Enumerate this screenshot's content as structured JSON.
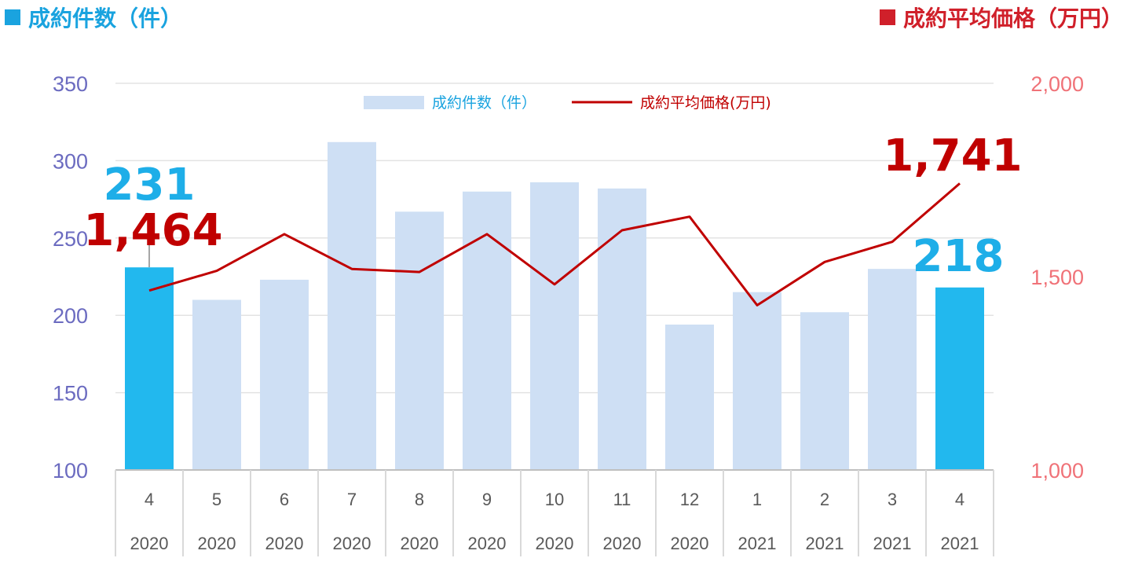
{
  "header": {
    "left_title": "成約件数（件）",
    "right_title": "成約平均価格（万円）"
  },
  "colors": {
    "bar_highlight": "#22b8ee",
    "bar_normal": "#cedff4",
    "line": "#c00000",
    "left_axis_text": "#6b6bc0",
    "right_axis_text": "#f07278",
    "count_callout": "#1eaee8",
    "price_callout": "#c00000",
    "left_title": "#1aa3df",
    "right_title": "#d0202a"
  },
  "chart_data": {
    "type": "bar+line",
    "categories": [
      {
        "month": "4",
        "year": "2020"
      },
      {
        "month": "5",
        "year": "2020"
      },
      {
        "month": "6",
        "year": "2020"
      },
      {
        "month": "7",
        "year": "2020"
      },
      {
        "month": "8",
        "year": "2020"
      },
      {
        "month": "9",
        "year": "2020"
      },
      {
        "month": "10",
        "year": "2020"
      },
      {
        "month": "11",
        "year": "2020"
      },
      {
        "month": "12",
        "year": "2020"
      },
      {
        "month": "1",
        "year": "2021"
      },
      {
        "month": "2",
        "year": "2021"
      },
      {
        "month": "3",
        "year": "2021"
      },
      {
        "month": "4",
        "year": "2021"
      }
    ],
    "series": [
      {
        "name": "成約件数（件）",
        "type": "bar",
        "axis": "left",
        "values": [
          231,
          210,
          223,
          312,
          267,
          280,
          286,
          282,
          194,
          215,
          202,
          230,
          218
        ],
        "highlighted": [
          0,
          12
        ]
      },
      {
        "name": "成約平均価格(万円)",
        "type": "line",
        "axis": "right",
        "values": [
          1464,
          1515,
          1610,
          1520,
          1512,
          1610,
          1480,
          1620,
          1655,
          1426,
          1538,
          1590,
          1741
        ]
      }
    ],
    "left_axis": {
      "min": 100,
      "max": 350,
      "ticks": [
        "100",
        "150",
        "200",
        "250",
        "300",
        "350"
      ]
    },
    "right_axis": {
      "min": 1000,
      "max": 2000,
      "ticks": [
        "1,000",
        "1,500",
        "2,000"
      ]
    },
    "grid": true,
    "legend_position": "top-center",
    "callouts": {
      "first_count": "231",
      "last_count": "218",
      "first_price": "1,464",
      "last_price": "1,741"
    }
  }
}
